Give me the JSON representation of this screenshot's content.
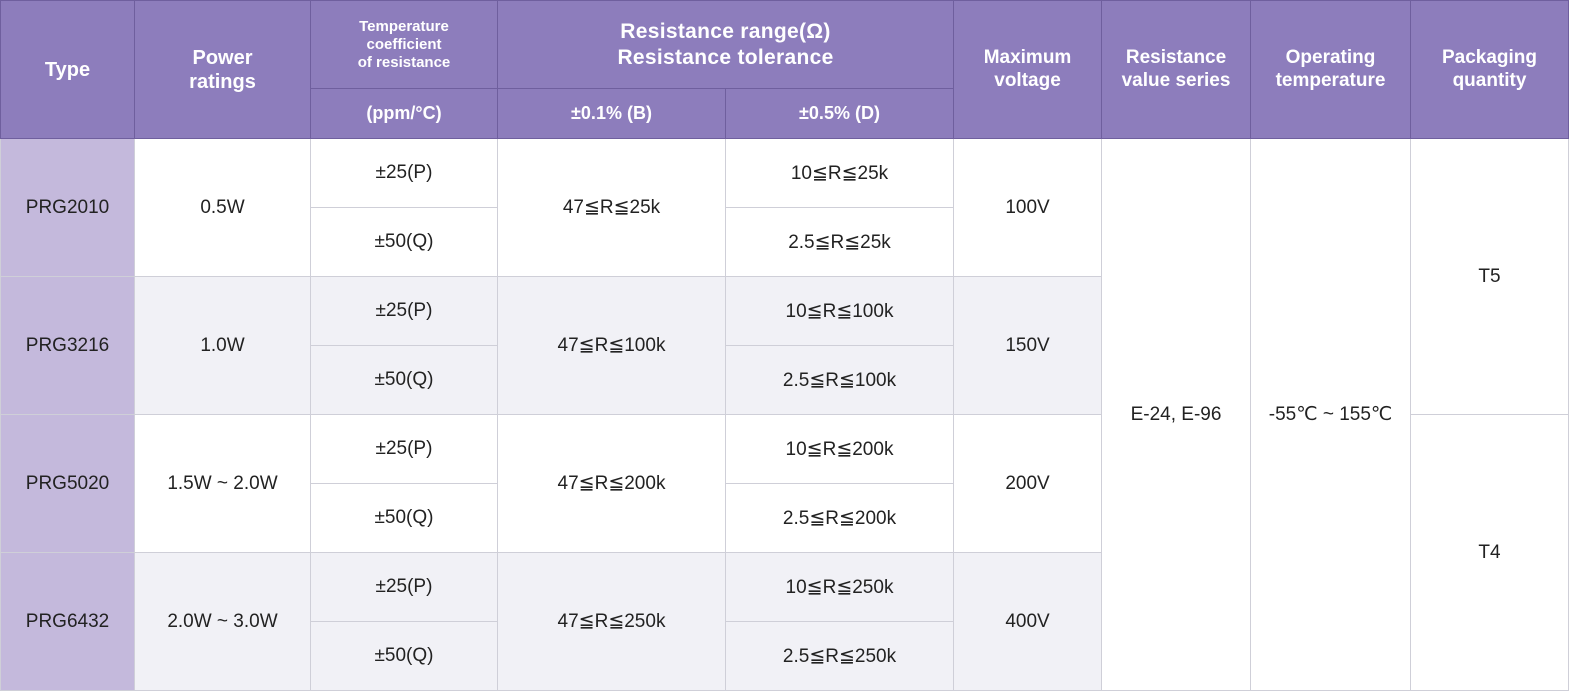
{
  "headers": {
    "type": "Type",
    "power": [
      "Power",
      "ratings"
    ],
    "tcr": [
      "Temperature",
      "coefficient",
      "of resistance"
    ],
    "tcr_unit": "(ppm/°C)",
    "range": [
      "Resistance range(Ω)",
      "Resistance tolerance"
    ],
    "tol_b": "±0.1% (B)",
    "tol_d": "±0.5% (D)",
    "voltage": [
      "Maximum",
      "voltage"
    ],
    "series": [
      "Resistance",
      "value series"
    ],
    "temp": [
      "Operating",
      "temperature"
    ],
    "packaging": [
      "Packaging",
      "quantity"
    ]
  },
  "rows": [
    {
      "type": "PRG2010",
      "power": "0.5W",
      "tcr_p": "±25(P)",
      "tcr_q": "±50(Q)",
      "range_b": "47≦R≦25k",
      "range_d_p": "10≦R≦25k",
      "range_d_q": "2.5≦R≦25k",
      "voltage": "100V"
    },
    {
      "type": "PRG3216",
      "power": "1.0W",
      "tcr_p": "±25(P)",
      "tcr_q": "±50(Q)",
      "range_b": "47≦R≦100k",
      "range_d_p": "10≦R≦100k",
      "range_d_q": "2.5≦R≦100k",
      "voltage": "150V"
    },
    {
      "type": "PRG5020",
      "power": "1.5W ~ 2.0W",
      "tcr_p": "±25(P)",
      "tcr_q": "±50(Q)",
      "range_b": "47≦R≦200k",
      "range_d_p": "10≦R≦200k",
      "range_d_q": "2.5≦R≦200k",
      "voltage": "200V"
    },
    {
      "type": "PRG6432",
      "power": "2.0W ~ 3.0W",
      "tcr_p": "±25(P)",
      "tcr_q": "±50(Q)",
      "range_b": "47≦R≦250k",
      "range_d_p": "10≦R≦250k",
      "range_d_q": "2.5≦R≦250k",
      "voltage": "400V"
    }
  ],
  "shared": {
    "series": "E-24, E-96",
    "temp": "-55℃ ~ 155℃",
    "pack_t5": "T5",
    "pack_t4": "T4"
  },
  "colors": {
    "header_bg": "#8d7dbc",
    "type_bg": "#c4b9dc",
    "alt_row_bg": "#f1f1f6"
  }
}
